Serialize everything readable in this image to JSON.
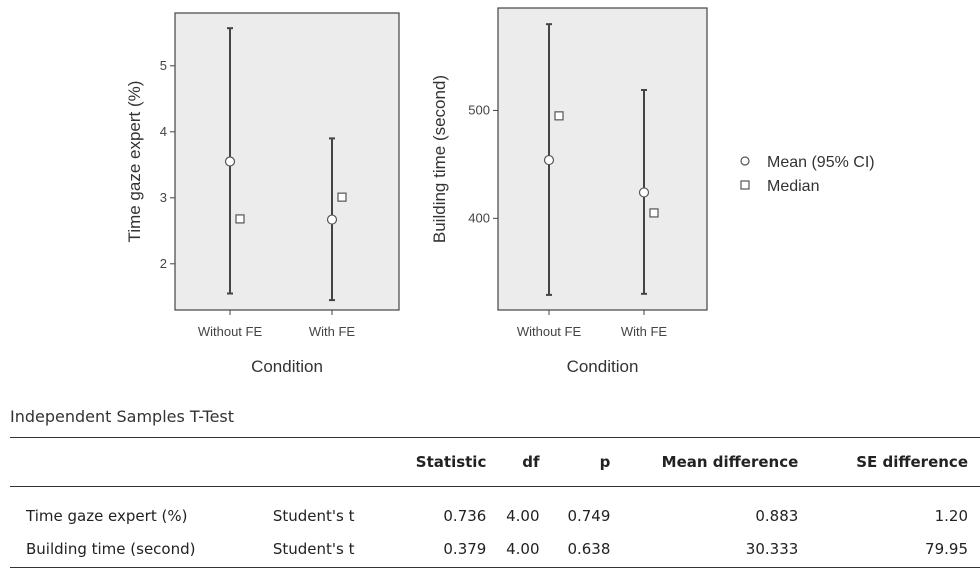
{
  "chart_data": [
    {
      "type": "errorbar",
      "xlabel": "Condition",
      "ylabel": "Time gaze expert (%)",
      "categories": [
        "Without FE",
        "With FE"
      ],
      "ylim": [
        1.3,
        5.8
      ],
      "yticks": [
        2,
        3,
        4,
        5
      ],
      "mean": [
        3.55,
        2.67
      ],
      "ci_lower": [
        1.55,
        1.45
      ],
      "ci_upper": [
        5.57,
        3.9
      ],
      "median": [
        2.68,
        3.01
      ]
    },
    {
      "type": "errorbar",
      "xlabel": "Condition",
      "ylabel": "Building time (second)",
      "categories": [
        "Without FE",
        "With FE"
      ],
      "ylim": [
        315,
        595
      ],
      "yticks": [
        400,
        500
      ],
      "mean": [
        454,
        424
      ],
      "ci_lower": [
        329,
        330
      ],
      "ci_upper": [
        580,
        519
      ],
      "median": [
        495,
        405
      ]
    }
  ],
  "legend": {
    "placement": "right",
    "entries": [
      {
        "label": "Mean (95% CI)",
        "marker": "circle"
      },
      {
        "label": "Median",
        "marker": "square"
      }
    ]
  },
  "colors": {
    "panel_bg": "#ececec",
    "panel_border": "#444444",
    "bar": "#444444"
  },
  "ttest": {
    "title": "Independent Samples T-Test",
    "headers": [
      "",
      "",
      "Statistic",
      "df",
      "p",
      "Mean difference",
      "SE difference"
    ],
    "rows": [
      {
        "variable": "Time gaze expert (%)",
        "test": "Student's t",
        "statistic": "0.736",
        "df": "4.00",
        "p": "0.749",
        "mean_difference": "0.883",
        "se_difference": "1.20"
      },
      {
        "variable": "Building time (second)",
        "test": "Student's t",
        "statistic": "0.379",
        "df": "4.00",
        "p": "0.638",
        "mean_difference": "30.333",
        "se_difference": "79.95"
      }
    ]
  }
}
